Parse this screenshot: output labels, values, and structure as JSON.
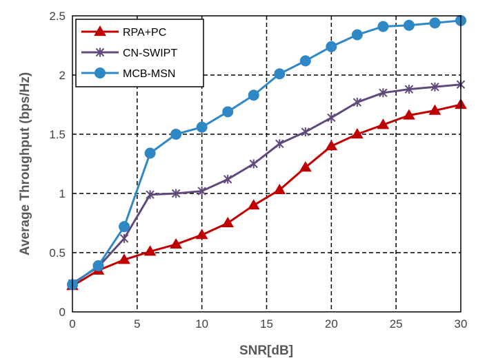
{
  "chart_data": {
    "type": "line",
    "title": "",
    "xlabel": "SNR[dB]",
    "ylabel": "Average Throughput (bps/Hz)",
    "xlim": [
      0,
      30
    ],
    "ylim": [
      0,
      2.5
    ],
    "x_ticks": [
      "0",
      "5",
      "10",
      "15",
      "20",
      "25",
      "30"
    ],
    "y_ticks": [
      "0",
      "0.5",
      "1",
      "1.5",
      "2",
      "2.5"
    ],
    "grid": true,
    "legend_position": "top-left",
    "x": [
      0,
      2,
      4,
      6,
      8,
      10,
      12,
      14,
      16,
      18,
      20,
      22,
      24,
      26,
      28,
      30
    ],
    "series": [
      {
        "name": "RPA+PC",
        "marker": "triangle",
        "color": "#C00000",
        "values": [
          0.22,
          0.35,
          0.44,
          0.51,
          0.57,
          0.65,
          0.75,
          0.9,
          1.03,
          1.22,
          1.4,
          1.5,
          1.58,
          1.66,
          1.7,
          1.75
        ]
      },
      {
        "name": "CN-SWIPT",
        "marker": "star",
        "color": "#604A7B",
        "values": [
          0.24,
          0.38,
          0.62,
          0.99,
          1.0,
          1.02,
          1.12,
          1.25,
          1.42,
          1.52,
          1.64,
          1.77,
          1.85,
          1.88,
          1.9,
          1.92
        ]
      },
      {
        "name": "MCB-MSN",
        "marker": "circle",
        "color": "#2E88C5",
        "values": [
          0.23,
          0.39,
          0.72,
          1.34,
          1.5,
          1.56,
          1.69,
          1.83,
          2.01,
          2.12,
          2.24,
          2.34,
          2.41,
          2.42,
          2.44,
          2.46
        ]
      }
    ]
  }
}
